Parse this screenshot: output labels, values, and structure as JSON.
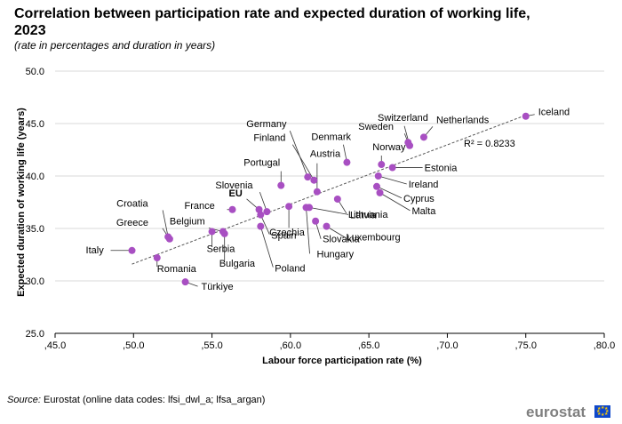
{
  "chart_data": {
    "type": "scatter",
    "title": "Correlation between participation rate and expected duration of working life, 2023",
    "subtitle": "(rate in percentages and duration in years)",
    "xlabel": "Labour force participation rate (%)",
    "ylabel": "Expected duration of working life (years)",
    "xlim": [
      45,
      80
    ],
    "ylim": [
      25,
      50
    ],
    "xticks": [
      ",45.0",
      ",50.0",
      ",55.0",
      ",60.0",
      ",65.0",
      ",70.0",
      ",75.0",
      ",80.0"
    ],
    "xtick_values": [
      45,
      50,
      55,
      60,
      65,
      70,
      75,
      80
    ],
    "yticks": [
      "25.0",
      "30.0",
      "35.0",
      "40.0",
      "45.0",
      "50.0"
    ],
    "ytick_values": [
      25,
      30,
      35,
      40,
      45,
      50
    ],
    "grid": "horizontal",
    "trendline": {
      "label": "R² = 0.8233",
      "from": [
        49.9,
        31.6
      ],
      "to": [
        75.0,
        45.8
      ]
    },
    "point_color": "#a84fc2",
    "points": [
      {
        "label": "Iceland",
        "x": 75.0,
        "y": 45.7
      },
      {
        "label": "Netherlands",
        "x": 68.5,
        "y": 43.7
      },
      {
        "label": "Switzerland",
        "x": 67.6,
        "y": 42.9
      },
      {
        "label": "Sweden",
        "x": 67.5,
        "y": 43.2
      },
      {
        "label": "Norway",
        "x": 65.8,
        "y": 41.1
      },
      {
        "label": "Estonia",
        "x": 66.5,
        "y": 40.8
      },
      {
        "label": "Denmark",
        "x": 63.6,
        "y": 41.3
      },
      {
        "label": "Ireland",
        "x": 65.6,
        "y": 40.0
      },
      {
        "label": "Cyprus",
        "x": 65.5,
        "y": 39.0
      },
      {
        "label": "Malta",
        "x": 65.7,
        "y": 38.4
      },
      {
        "label": "Germany",
        "x": 61.1,
        "y": 39.9
      },
      {
        "label": "Finland",
        "x": 61.5,
        "y": 39.6
      },
      {
        "label": "Austria",
        "x": 61.7,
        "y": 38.5
      },
      {
        "label": "Portugal",
        "x": 59.4,
        "y": 39.1
      },
      {
        "label": "Lithuania",
        "x": 63.0,
        "y": 37.8
      },
      {
        "label": "Latvia",
        "x": 61.2,
        "y": 37.0
      },
      {
        "label": "Czechia",
        "x": 59.9,
        "y": 37.1
      },
      {
        "label": "Luxembourg",
        "x": 62.3,
        "y": 35.2
      },
      {
        "label": "Slovakia",
        "x": 61.6,
        "y": 35.7
      },
      {
        "label": "Hungary",
        "x": 61.0,
        "y": 37.0
      },
      {
        "label": "Slovenia",
        "x": 58.5,
        "y": 36.6
      },
      {
        "label": "EU",
        "x": 58.0,
        "y": 36.8,
        "bold": true
      },
      {
        "label": "Spain",
        "x": 58.1,
        "y": 36.3
      },
      {
        "label": "Poland",
        "x": 58.1,
        "y": 35.2
      },
      {
        "label": "France",
        "x": 56.3,
        "y": 36.8
      },
      {
        "label": "Belgium",
        "x": 55.7,
        "y": 34.7
      },
      {
        "label": "Serbia",
        "x": 55.0,
        "y": 34.7
      },
      {
        "label": "Bulgaria",
        "x": 55.8,
        "y": 34.5
      },
      {
        "label": "Croatia",
        "x": 52.2,
        "y": 34.2
      },
      {
        "label": "Greece",
        "x": 52.3,
        "y": 34.0
      },
      {
        "label": "Italy",
        "x": 49.9,
        "y": 32.9
      },
      {
        "label": "Romania",
        "x": 51.5,
        "y": 32.2
      },
      {
        "label": "Türkiye",
        "x": 53.3,
        "y": 29.9
      }
    ]
  },
  "source": {
    "prefix": "Source:",
    "text": " Eurostat (online data codes: lfsi_dwl_a; lfsa_argan)"
  },
  "logo": {
    "text": "eurostat"
  }
}
